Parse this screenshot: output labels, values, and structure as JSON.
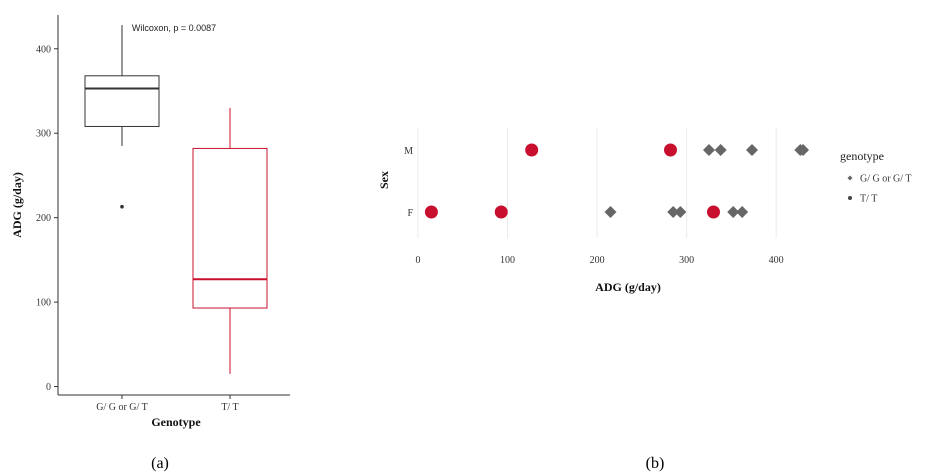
{
  "chart_data": [
    {
      "panel_label": "(a)",
      "type": "box",
      "xlabel": "Genotype",
      "ylabel": "ADG (g/day)",
      "ylim": [
        -10,
        440
      ],
      "yticks": [
        0,
        100,
        200,
        300,
        400
      ],
      "annotation": "Wilcoxon, p = 0.0087",
      "colors": {
        "G/ G or G/ T": "#333333",
        "T/ T": "#c8102e"
      },
      "boxes": [
        {
          "category": "G/ G or G/ T",
          "min": 285,
          "q1": 308,
          "median": 353,
          "q3": 368,
          "max": 428,
          "outliers": [
            213
          ]
        },
        {
          "category": "T/ T",
          "min": 15,
          "q1": 93,
          "median": 127,
          "q3": 282,
          "max": 330,
          "outliers": []
        }
      ]
    },
    {
      "panel_label": "(b)",
      "type": "scatter",
      "xlabel": "ADG (g/day)",
      "ylabel": "Sex",
      "xlim": [
        -10,
        440
      ],
      "xticks": [
        0,
        100,
        200,
        300,
        400
      ],
      "categories": [
        "M",
        "F"
      ],
      "legend": {
        "title": "genotype",
        "position": "right"
      },
      "series": [
        {
          "name": "G/ G or G/ T",
          "color": "#666666",
          "marker": "diamond",
          "points": [
            {
              "x": 325,
              "y": "M"
            },
            {
              "x": 338,
              "y": "M"
            },
            {
              "x": 373,
              "y": "M"
            },
            {
              "x": 427,
              "y": "M"
            },
            {
              "x": 430,
              "y": "M"
            },
            {
              "x": 215,
              "y": "F"
            },
            {
              "x": 285,
              "y": "F"
            },
            {
              "x": 293,
              "y": "F"
            },
            {
              "x": 352,
              "y": "F"
            },
            {
              "x": 362,
              "y": "F"
            }
          ]
        },
        {
          "name": "T/ T",
          "color": "#c8102e",
          "marker": "circle",
          "points": [
            {
              "x": 127,
              "y": "M"
            },
            {
              "x": 282,
              "y": "M"
            },
            {
              "x": 15,
              "y": "F"
            },
            {
              "x": 93,
              "y": "F"
            },
            {
              "x": 330,
              "y": "F"
            }
          ]
        }
      ]
    }
  ]
}
